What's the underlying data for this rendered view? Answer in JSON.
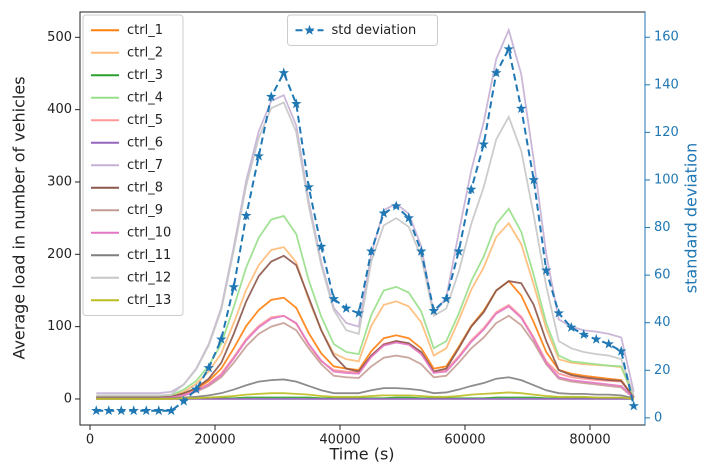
{
  "chart_data": {
    "type": "line",
    "x_label": "Time (s)",
    "y_label": "Average load in number of vehicles",
    "y2_label": "standard deviation",
    "x": [
      1000,
      3000,
      5000,
      7000,
      9000,
      11000,
      13000,
      15000,
      17000,
      19000,
      21000,
      23000,
      25000,
      27000,
      29000,
      31000,
      33000,
      35000,
      37000,
      39000,
      41000,
      43000,
      45000,
      47000,
      49000,
      51000,
      53000,
      55000,
      57000,
      59000,
      61000,
      63000,
      65000,
      67000,
      69000,
      71000,
      73000,
      75000,
      77000,
      79000,
      81000,
      83000,
      85000,
      87000
    ],
    "xlim": [
      -1600,
      88800
    ],
    "xticks": [
      0,
      20000,
      40000,
      60000,
      80000
    ],
    "ylim": [
      -36,
      535
    ],
    "yticks": [
      0,
      100,
      200,
      300,
      400,
      500
    ],
    "y2lim": [
      -3,
      170.6
    ],
    "y2ticks": [
      0,
      20,
      40,
      60,
      80,
      100,
      120,
      140,
      160
    ],
    "y2_color": "#1f77b4",
    "legend": "upper left",
    "y2_legend": "upper center",
    "series": [
      {
        "name": "ctrl_1",
        "color": "#ff7f0e",
        "values": [
          2,
          2,
          2,
          2,
          2,
          2,
          3,
          7,
          14,
          25,
          42,
          70,
          101,
          123,
          137,
          140,
          126,
          91,
          63,
          45,
          42,
          40,
          66,
          84,
          88,
          84,
          70,
          42,
          45,
          72,
          101,
          122,
          150,
          163,
          143,
          106,
          65,
          40,
          35,
          32,
          30,
          28,
          26,
          2
        ]
      },
      {
        "name": "ctrl_2",
        "color": "#ffbb78",
        "values": [
          3,
          3,
          3,
          3,
          3,
          3,
          4,
          10,
          21,
          38,
          63,
          105,
          151,
          185,
          206,
          210,
          189,
          137,
          95,
          63,
          55,
          52,
          101,
          130,
          135,
          128,
          106,
          60,
          70,
          109,
          151,
          182,
          224,
          243,
          214,
          158,
          97,
          55,
          50,
          48,
          47,
          46,
          44,
          3
        ]
      },
      {
        "name": "ctrl_3",
        "color": "#2ca02c",
        "values": [
          1,
          1,
          1,
          1,
          1,
          1,
          1,
          1,
          1,
          1,
          1,
          1,
          2,
          2,
          2,
          2,
          2,
          2,
          1,
          1,
          1,
          1,
          1,
          1,
          2,
          2,
          1,
          1,
          1,
          1,
          1,
          1,
          2,
          2,
          2,
          2,
          1,
          1,
          1,
          1,
          1,
          1,
          1,
          0
        ]
      },
      {
        "name": "ctrl_4",
        "color": "#98df8a",
        "values": [
          3,
          3,
          3,
          3,
          3,
          3,
          5,
          13,
          25,
          46,
          76,
          127,
          182,
          223,
          248,
          253,
          228,
          164,
          114,
          76,
          65,
          62,
          116,
          150,
          155,
          147,
          121,
          70,
          80,
          118,
          163,
          197,
          242,
          263,
          231,
          171,
          105,
          60,
          52,
          50,
          48,
          46,
          45,
          3
        ]
      },
      {
        "name": "ctrl_5",
        "color": "#ff9896",
        "values": [
          2,
          2,
          2,
          2,
          2,
          2,
          3,
          6,
          12,
          21,
          35,
          58,
          83,
          101,
          113,
          115,
          104,
          75,
          52,
          40,
          38,
          37,
          60,
          76,
          80,
          76,
          63,
          38,
          40,
          59,
          81,
          98,
          120,
          130,
          114,
          85,
          52,
          35,
          30,
          28,
          26,
          25,
          24,
          2
        ]
      },
      {
        "name": "ctrl_6",
        "color": "#9467bd",
        "values": [
          0,
          0,
          0,
          0,
          0,
          0,
          0,
          0,
          0,
          0,
          0,
          0,
          0,
          0,
          0,
          0,
          0,
          0,
          0,
          0,
          0,
          0,
          0,
          0,
          0,
          0,
          0,
          0,
          0,
          0,
          0,
          0,
          0,
          0,
          0,
          0,
          0,
          0,
          0,
          0,
          0,
          0,
          0,
          0
        ]
      },
      {
        "name": "ctrl_7",
        "color": "#c5b0d5",
        "values": [
          8,
          8,
          8,
          8,
          8,
          8,
          10,
          20,
          42,
          76,
          126,
          210,
          302,
          370,
          412,
          420,
          378,
          273,
          189,
          126,
          105,
          100,
          200,
          261,
          270,
          256,
          211,
          118,
          140,
          230,
          316,
          383,
          470,
          510,
          449,
          330,
          200,
          110,
          100,
          95,
          93,
          90,
          85,
          10
        ]
      },
      {
        "name": "ctrl_8",
        "color": "#8c564b",
        "values": [
          2,
          2,
          2,
          2,
          2,
          2,
          3,
          8,
          15,
          28,
          50,
          90,
          135,
          170,
          190,
          198,
          185,
          140,
          95,
          60,
          42,
          38,
          60,
          75,
          80,
          77,
          65,
          38,
          42,
          70,
          100,
          120,
          150,
          163,
          160,
          130,
          80,
          40,
          33,
          30,
          28,
          26,
          25,
          2
        ]
      },
      {
        "name": "ctrl_9",
        "color": "#c49c94",
        "values": [
          1,
          1,
          1,
          1,
          1,
          1,
          2,
          5,
          10,
          18,
          30,
          50,
          73,
          90,
          100,
          105,
          95,
          70,
          48,
          32,
          30,
          29,
          45,
          57,
          60,
          57,
          48,
          30,
          32,
          50,
          70,
          85,
          105,
          115,
          102,
          78,
          48,
          28,
          24,
          22,
          20,
          18,
          16,
          1
        ]
      },
      {
        "name": "ctrl_10",
        "color": "#e377c2",
        "values": [
          1,
          1,
          1,
          1,
          1,
          1,
          2,
          5,
          11,
          20,
          33,
          56,
          81,
          99,
          111,
          115,
          105,
          76,
          53,
          38,
          36,
          35,
          58,
          74,
          78,
          75,
          62,
          36,
          38,
          57,
          79,
          96,
          118,
          128,
          112,
          83,
          50,
          30,
          26,
          24,
          22,
          20,
          18,
          1
        ]
      },
      {
        "name": "ctrl_11",
        "color": "#7f7f7f",
        "values": [
          1,
          1,
          1,
          1,
          1,
          1,
          1,
          2,
          3,
          5,
          8,
          13,
          19,
          24,
          26,
          27,
          24,
          18,
          12,
          8,
          8,
          8,
          12,
          15,
          15,
          14,
          12,
          8,
          9,
          13,
          18,
          22,
          28,
          30,
          26,
          19,
          12,
          8,
          7,
          7,
          6,
          6,
          5,
          1
        ]
      },
      {
        "name": "ctrl_12",
        "color": "#c7c7c7",
        "values": [
          5,
          5,
          5,
          5,
          5,
          5,
          6,
          20,
          41,
          74,
          123,
          205,
          295,
          361,
          402,
          410,
          369,
          267,
          185,
          123,
          95,
          90,
          190,
          240,
          250,
          238,
          196,
          115,
          125,
          176,
          242,
          293,
          359,
          390,
          343,
          254,
          156,
          80,
          70,
          65,
          62,
          60,
          55,
          5
        ]
      },
      {
        "name": "ctrl_13",
        "color": "#bcbd22",
        "values": [
          0,
          0,
          0,
          0,
          0,
          0,
          0,
          1,
          1,
          2,
          3,
          4,
          6,
          7,
          8,
          8,
          7,
          6,
          4,
          3,
          3,
          3,
          4,
          5,
          5,
          5,
          4,
          3,
          3,
          4,
          6,
          7,
          8,
          9,
          8,
          6,
          4,
          3,
          3,
          3,
          2,
          2,
          2,
          0
        ]
      },
      {
        "name": "std deviation",
        "color": "#1f77b4",
        "axis": "y2",
        "dashed": true,
        "marker": "star",
        "values": [
          3,
          3,
          3,
          3,
          3,
          3,
          3,
          7,
          12,
          21,
          33,
          55,
          85,
          110,
          135,
          145,
          132,
          97,
          72,
          50,
          46,
          44,
          70,
          86,
          89,
          84,
          70,
          45,
          50,
          70,
          96,
          115,
          145,
          155,
          130,
          100,
          62,
          44,
          38,
          35,
          33,
          31,
          28,
          5
        ]
      }
    ]
  }
}
